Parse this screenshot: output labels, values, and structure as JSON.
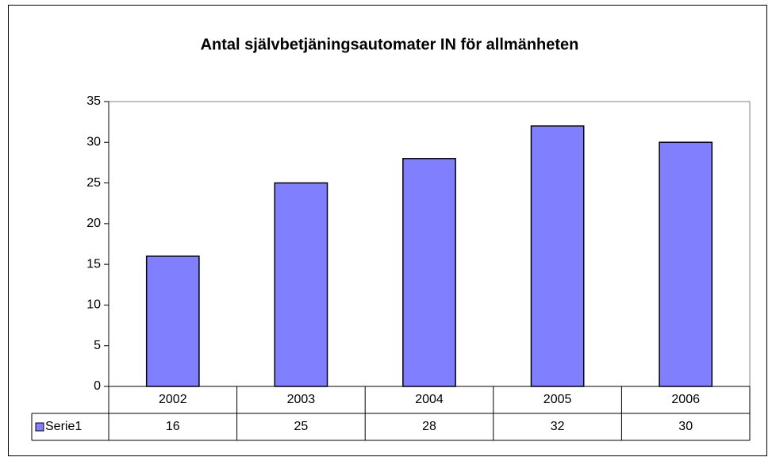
{
  "chart_data": {
    "type": "bar",
    "title": "Antal självbetjäningsautomater IN för allmänheten",
    "categories": [
      "2002",
      "2003",
      "2004",
      "2005",
      "2006"
    ],
    "series": [
      {
        "name": "Serie1",
        "color": "#8080ff",
        "values": [
          16,
          25,
          28,
          32,
          30
        ]
      }
    ],
    "ylim": [
      0,
      35
    ],
    "yticks": [
      0,
      5,
      10,
      15,
      20,
      25,
      30,
      35
    ],
    "grid": false,
    "data_table": true
  }
}
